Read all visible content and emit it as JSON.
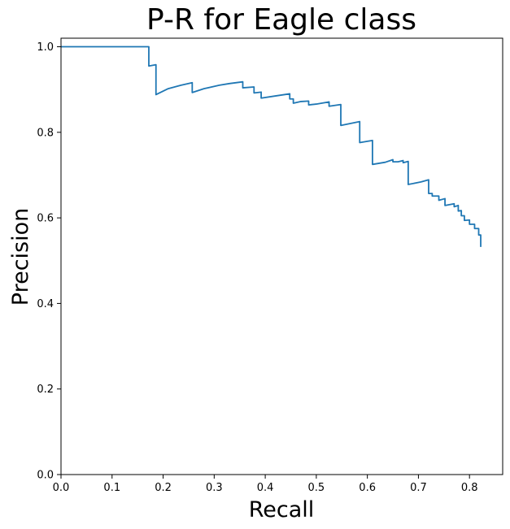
{
  "chart_data": {
    "type": "line",
    "title": "P-R for Eagle class",
    "xlabel": "Recall",
    "ylabel": "Precision",
    "xlim": [
      0.0,
      0.865
    ],
    "ylim": [
      0.0,
      1.02
    ],
    "xticks": [
      0.0,
      0.1,
      0.2,
      0.3,
      0.4,
      0.5,
      0.6,
      0.7,
      0.8
    ],
    "xtick_labels": [
      "0.0",
      "0.1",
      "0.2",
      "0.3",
      "0.4",
      "0.5",
      "0.6",
      "0.7",
      "0.8"
    ],
    "yticks": [
      0.0,
      0.2,
      0.4,
      0.6,
      0.8,
      1.0
    ],
    "ytick_labels": [
      "0.0",
      "0.2",
      "0.4",
      "0.6",
      "0.8",
      "1.0"
    ],
    "grid": false,
    "legend": "none",
    "line_color": "#1f77b4",
    "series": [
      {
        "x": [
          0.0,
          0.172,
          0.172,
          0.186,
          0.186,
          0.21,
          0.235,
          0.257,
          0.257,
          0.28,
          0.31,
          0.33,
          0.356,
          0.356,
          0.378,
          0.378,
          0.392,
          0.392,
          0.42,
          0.448,
          0.448,
          0.455,
          0.455,
          0.47,
          0.485,
          0.485,
          0.5,
          0.515,
          0.525,
          0.525,
          0.548,
          0.548,
          0.585,
          0.585,
          0.6,
          0.61,
          0.61,
          0.635,
          0.65,
          0.65,
          0.66,
          0.67,
          0.67,
          0.68,
          0.68,
          0.705,
          0.72,
          0.72,
          0.727,
          0.727,
          0.74,
          0.74,
          0.752,
          0.752,
          0.77,
          0.77,
          0.778,
          0.778,
          0.784,
          0.784,
          0.79,
          0.79,
          0.8,
          0.8,
          0.81,
          0.81,
          0.818,
          0.818,
          0.822,
          0.822
        ],
        "y": [
          1.0,
          1.0,
          0.955,
          0.958,
          0.888,
          0.902,
          0.91,
          0.916,
          0.893,
          0.902,
          0.91,
          0.914,
          0.918,
          0.904,
          0.906,
          0.892,
          0.894,
          0.88,
          0.885,
          0.89,
          0.878,
          0.878,
          0.868,
          0.872,
          0.873,
          0.864,
          0.866,
          0.869,
          0.871,
          0.861,
          0.865,
          0.816,
          0.825,
          0.776,
          0.779,
          0.781,
          0.725,
          0.73,
          0.736,
          0.731,
          0.731,
          0.734,
          0.729,
          0.732,
          0.678,
          0.684,
          0.689,
          0.657,
          0.657,
          0.651,
          0.651,
          0.641,
          0.645,
          0.629,
          0.633,
          0.626,
          0.629,
          0.616,
          0.617,
          0.605,
          0.605,
          0.594,
          0.595,
          0.585,
          0.585,
          0.575,
          0.575,
          0.56,
          0.56,
          0.532
        ]
      }
    ]
  }
}
